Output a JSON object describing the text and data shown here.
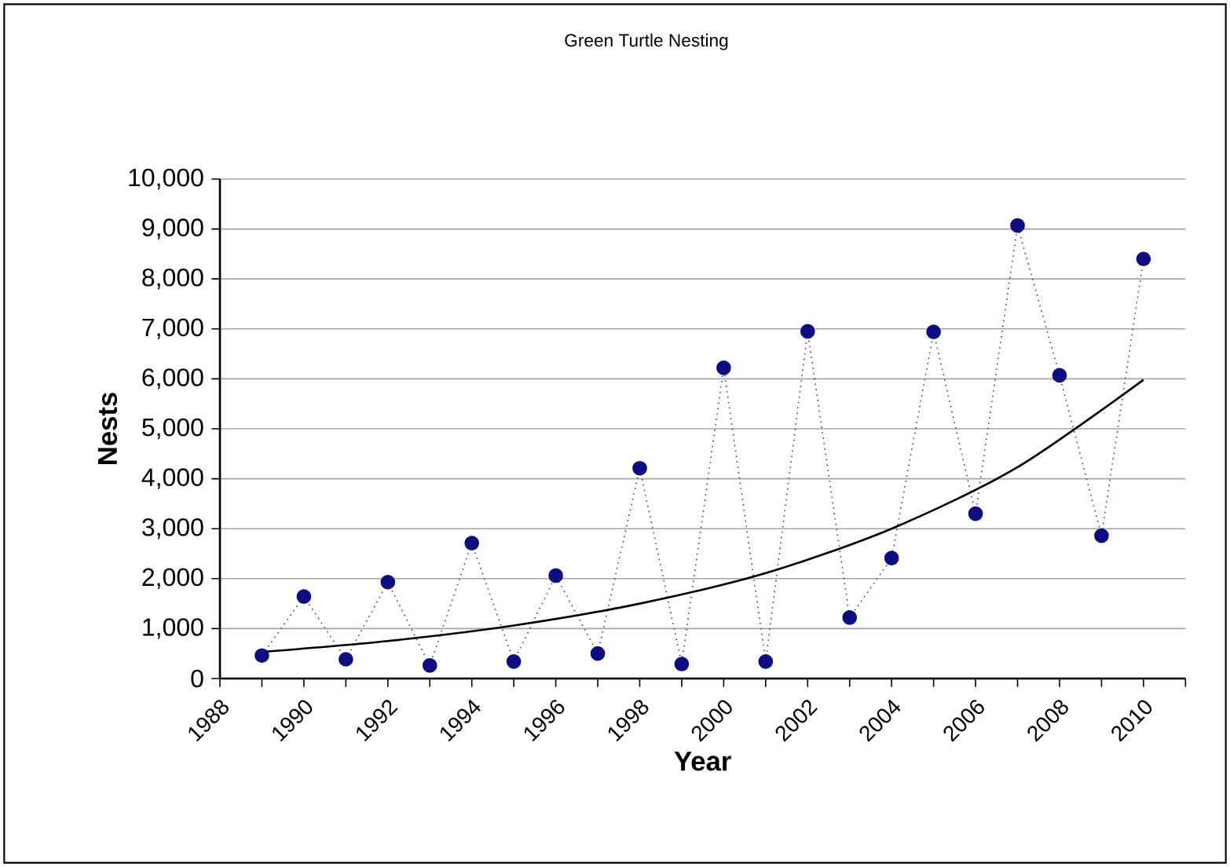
{
  "chart_data": {
    "type": "line",
    "title": "Green Turtle Nesting",
    "xlabel": "Year",
    "ylabel": "Nests",
    "xlim": [
      1988,
      2011
    ],
    "xticks": [
      1988,
      {
        "value": 1989,
        "label": null
      },
      1990,
      {
        "value": 1991,
        "label": null
      },
      1992,
      {
        "value": 1993,
        "label": null
      },
      1994,
      {
        "value": 1995,
        "label": null
      },
      1996,
      {
        "value": 1997,
        "label": null
      },
      1998,
      {
        "value": 1999,
        "label": null
      },
      2000,
      {
        "value": 2001,
        "label": null
      },
      2002,
      {
        "value": 2003,
        "label": null
      },
      2004,
      {
        "value": 2005,
        "label": null
      },
      2006,
      {
        "value": 2007,
        "label": null
      },
      2008,
      {
        "value": 2009,
        "label": null
      },
      2010,
      {
        "value": 2011,
        "label": null
      }
    ],
    "ylim": [
      0,
      10000
    ],
    "yticks": [
      0,
      {
        "value": 1000,
        "label": "1,000"
      },
      {
        "value": 2000,
        "label": "2,000"
      },
      {
        "value": 3000,
        "label": "3,000"
      },
      {
        "value": 4000,
        "label": "4,000"
      },
      {
        "value": 5000,
        "label": "5,000"
      },
      {
        "value": 6000,
        "label": "6,000"
      },
      {
        "value": 7000,
        "label": "7,000"
      },
      {
        "value": 8000,
        "label": "8,000"
      },
      {
        "value": 9000,
        "label": "9,000"
      },
      {
        "value": 10000,
        "label": "10,000"
      }
    ],
    "grid": "y",
    "series": [
      {
        "x": [
          1989,
          1990,
          1991,
          1992,
          1993,
          1994,
          1995,
          1996,
          1997,
          1998,
          1999,
          2000,
          2001,
          2002,
          2003,
          2004,
          2005,
          2006,
          2007,
          2008,
          2009,
          2010
        ],
        "values": [
          460,
          1640,
          385,
          1930,
          260,
          2710,
          340,
          2060,
          500,
          4210,
          290,
          6220,
          340,
          6950,
          1220,
          2410,
          6940,
          3300,
          9070,
          6070,
          2860,
          8400
        ],
        "color": "#0d0d80",
        "marker": "circle",
        "line_style": "dotted"
      },
      {
        "x": [
          1989,
          1992,
          1995,
          1998,
          2001,
          2004,
          2007,
          2010
        ],
        "values": [
          530,
          750,
          1060,
          1500,
          2110,
          3000,
          4230,
          5980
        ],
        "color": "#000000",
        "marker": "none",
        "line_style": "solid"
      }
    ]
  }
}
